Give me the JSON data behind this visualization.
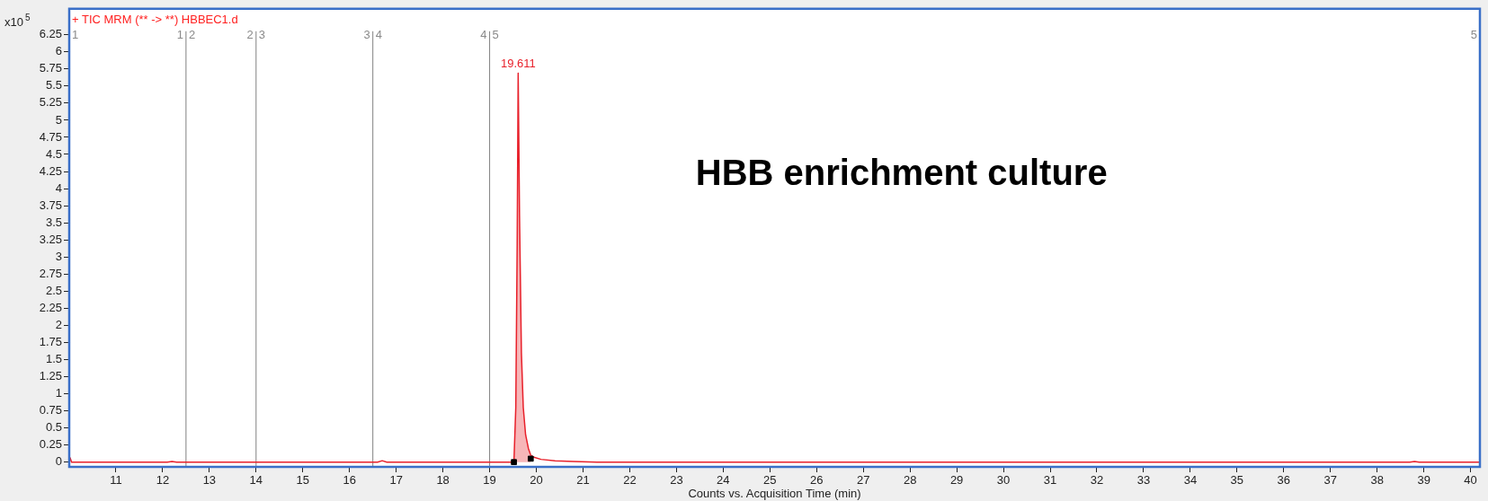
{
  "chart_data": {
    "type": "line",
    "title": "+ TIC MRM (** -> **) HBBEC1.d",
    "xlabel": "Counts vs. Acquisition Time (min)",
    "ylabel": "x10$^{5}$",
    "xlim": [
      10,
      40.2
    ],
    "xticks": [
      11,
      12,
      13,
      14,
      15,
      16,
      17,
      18,
      19,
      20,
      21,
      22,
      23,
      24,
      25,
      26,
      27,
      28,
      29,
      30,
      31,
      32,
      33,
      34,
      35,
      36,
      37,
      38,
      39,
      40
    ],
    "ylim": [
      -0.07,
      6.63
    ],
    "yticks": [
      0,
      0.25,
      0.5,
      0.75,
      1,
      1.25,
      1.5,
      1.75,
      2,
      2.25,
      2.5,
      2.75,
      3,
      3.25,
      3.5,
      3.75,
      4,
      4.25,
      4.5,
      4.75,
      5,
      5.25,
      5.5,
      5.75,
      6,
      6.25
    ],
    "legend": false,
    "marker": "none",
    "line_style": "solid",
    "series": [
      {
        "type": "area",
        "color": "#f7b6b8",
        "x": [
          19.52,
          19.56,
          19.59,
          19.611,
          19.64,
          19.68,
          19.72,
          19.77,
          19.83,
          19.88
        ],
        "values": [
          0,
          0.8,
          3.2,
          5.69,
          3.6,
          1.6,
          0.8,
          0.4,
          0.2,
          0.05
        ]
      },
      {
        "color": "#e8202a",
        "x": [
          10,
          10.02,
          10.05,
          12.1,
          12.2,
          12.3,
          16.6,
          16.7,
          16.8,
          19.5,
          19.52,
          19.56,
          19.59,
          19.611,
          19.64,
          19.68,
          19.72,
          19.77,
          19.83,
          19.88,
          19.95,
          20.1,
          20.4,
          20.8,
          21.3,
          22,
          38.7,
          38.8,
          38.9,
          40.2
        ],
        "values": [
          0,
          0.06,
          0,
          0,
          0.01,
          0,
          0,
          0.02,
          0,
          0,
          0,
          0.8,
          3.2,
          5.69,
          3.6,
          1.6,
          0.8,
          0.4,
          0.2,
          0.1,
          0.07,
          0.04,
          0.02,
          0.01,
          0,
          0,
          0,
          0.01,
          0,
          0
        ]
      },
      {
        "type": "scatter",
        "color": "#000000",
        "marker": "square",
        "x": [
          19.52,
          19.88
        ],
        "values": [
          0,
          0.05
        ]
      }
    ],
    "ref_lines": [
      {
        "axis": "x",
        "value": 12.5,
        "color": "#808080"
      },
      {
        "axis": "x",
        "value": 14.0,
        "color": "#808080"
      },
      {
        "axis": "x",
        "value": 16.5,
        "color": "#808080"
      },
      {
        "axis": "x",
        "value": 19.0,
        "color": "#808080"
      }
    ],
    "annotations": [
      "HBB enrichment culture",
      {
        "text": "19.611",
        "x": 19.611,
        "y": 5.69
      },
      "1",
      "1",
      "2",
      "2",
      "3",
      "3",
      "4",
      "4",
      "5",
      "5"
    ]
  }
}
